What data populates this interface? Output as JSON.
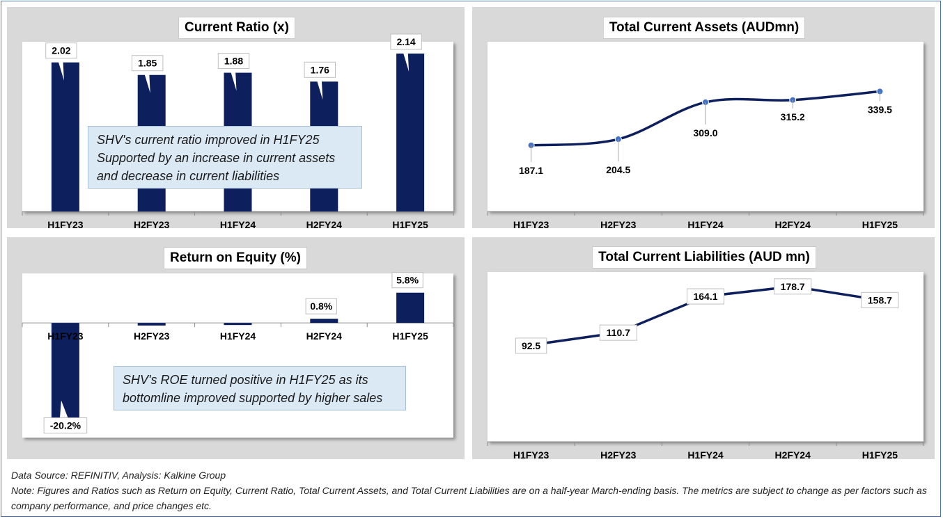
{
  "colors": {
    "bar": "#0d1f5c",
    "line": "#0d1f5c",
    "line_light": "#10296e",
    "marker": "#4472c4",
    "panel_bg": "#d9d9d9"
  },
  "chart_data": [
    {
      "id": "current_ratio",
      "type": "bar",
      "title": "Current Ratio (x)",
      "categories": [
        "H1FY23",
        "H2FY23",
        "H1FY24",
        "H2FY24",
        "H1FY25"
      ],
      "values": [
        2.02,
        1.85,
        1.88,
        1.76,
        2.14
      ],
      "data_labels": [
        "2.02",
        "1.85",
        "1.88",
        "1.76",
        "2.14"
      ],
      "ylim": [
        0,
        2.3
      ],
      "grid": false,
      "annotation": [
        "SHV's current ratio improved in H1FY25",
        "Supported by an increase in current assets",
        "and decrease in current liabilities"
      ]
    },
    {
      "id": "total_current_assets",
      "type": "line",
      "title": "Total Current Assets (AUDmn)",
      "categories": [
        "H1FY23",
        "H2FY23",
        "H1FY24",
        "H2FY24",
        "H1FY25"
      ],
      "values": [
        187.1,
        204.5,
        309.0,
        315.2,
        339.5
      ],
      "data_labels": [
        "187.1",
        "204.5",
        "309.0",
        "315.2",
        "339.5"
      ],
      "ylim": [
        0,
        480
      ],
      "grid": false
    },
    {
      "id": "return_on_equity",
      "type": "bar",
      "title": "Return on Equity (%)",
      "categories": [
        "H1FY23",
        "H2FY23",
        "H1FY24",
        "H2FY24",
        "H1FY25"
      ],
      "values": [
        -20.2,
        -0.5,
        -0.4,
        0.8,
        5.8
      ],
      "data_labels": [
        "-20.2%",
        "",
        "",
        "0.8%",
        "5.8%"
      ],
      "ylim": [
        -22,
        9.5
      ],
      "grid": false,
      "annotation": [
        "SHV's ROE turned positive in H1FY25 as its",
        "bottomline improved supported by higher sales"
      ]
    },
    {
      "id": "total_current_liabilities",
      "type": "line",
      "title": "Total Current Liabilities (AUD mn)",
      "categories": [
        "H1FY23",
        "H2FY23",
        "H1FY24",
        "H2FY24",
        "H1FY25"
      ],
      "values": [
        92.5,
        110.7,
        164.1,
        178.7,
        158.7
      ],
      "data_labels": [
        "92.5",
        "110.7",
        "164.1",
        "178.7",
        "158.7"
      ],
      "ylim": [
        -50,
        200
      ],
      "grid": false
    }
  ],
  "footer": {
    "source": "Data Source: REFINITIV, Analysis: Kalkine Group",
    "note": "Note: Figures and Ratios such as Return on Equity, Current Ratio, Total Current Assets, and Total Current Liabilities  are on a half-year March-ending basis. The metrics are subject to change as per factors such as company performance, and price changes etc."
  }
}
